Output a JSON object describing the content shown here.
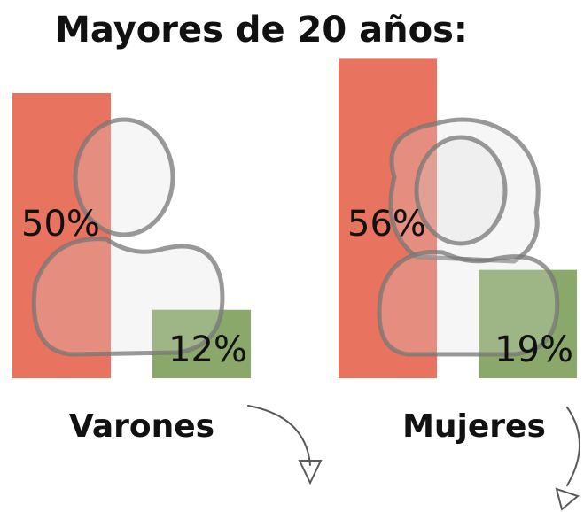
{
  "chart_data": {
    "type": "bar",
    "title": "Mayores de 20 años:",
    "categories": [
      "Varones",
      "Mujeres"
    ],
    "series": [
      {
        "color": "#e8735f",
        "values": [
          50,
          56
        ],
        "value_labels": [
          "50%",
          "56%"
        ]
      },
      {
        "color": "#8aa86a",
        "values": [
          12,
          19
        ],
        "value_labels": [
          "12%",
          "19%"
        ]
      }
    ]
  }
}
